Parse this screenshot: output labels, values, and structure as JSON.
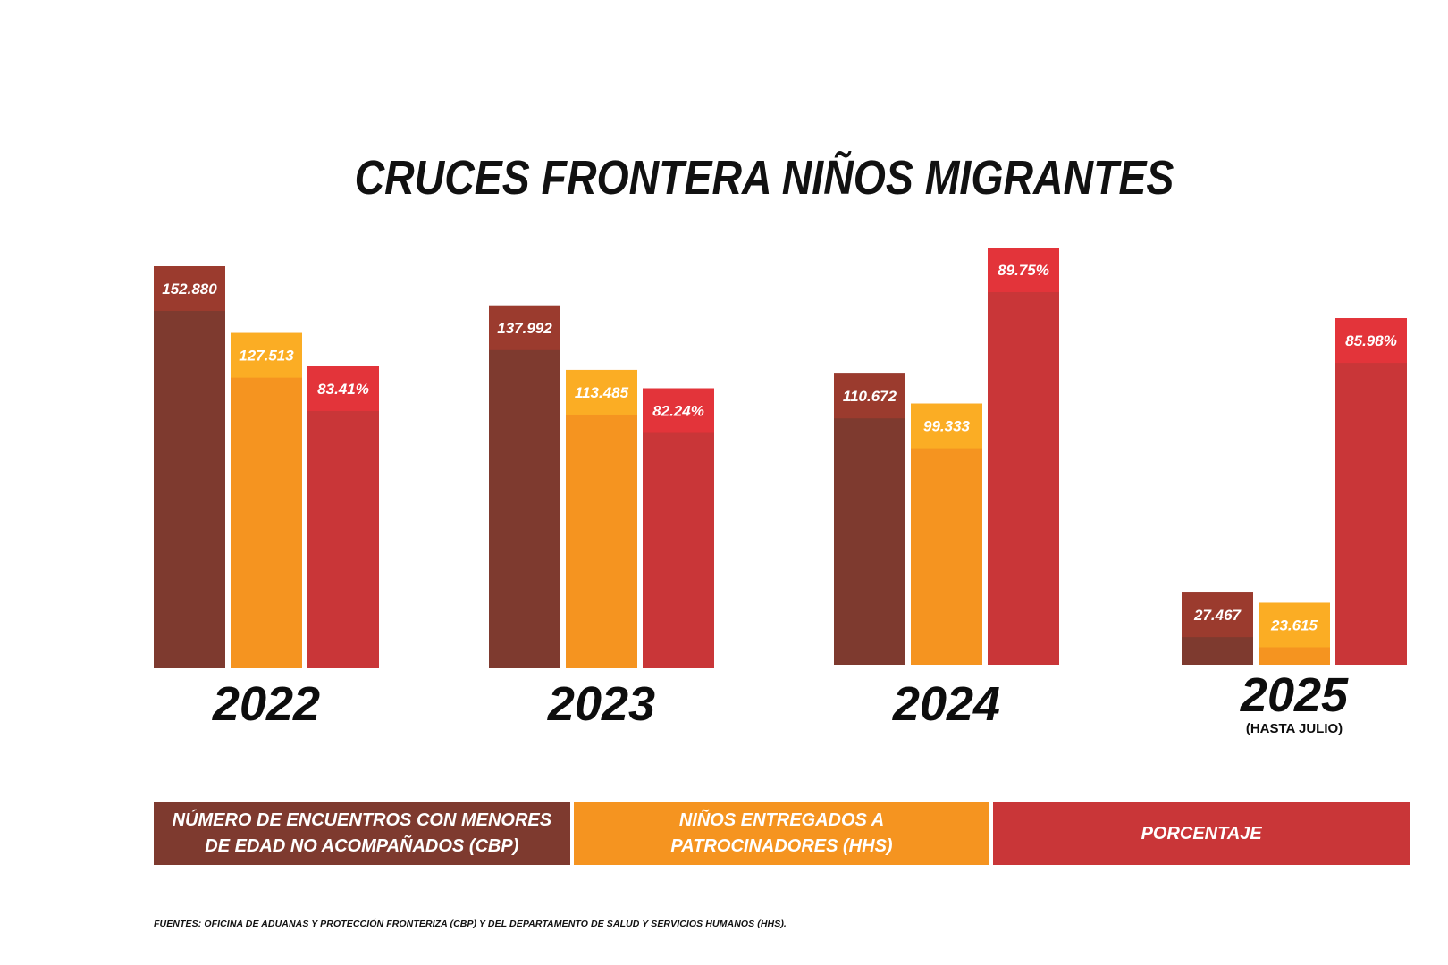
{
  "title": "CRUCES FRONTERA NIÑOS MIGRANTES",
  "chart_data": {
    "type": "bar",
    "title": "CRUCES FRONTERA NIÑOS MIGRANTES",
    "categories": [
      "2022",
      "2023",
      "2024",
      "2025"
    ],
    "category_notes": [
      "",
      "",
      "",
      "(HASTA JULIO)"
    ],
    "series": [
      {
        "name": "NÚMERO DE ENCUENTROS CON MENORES DE EDAD NO ACOMPAÑADOS (CBP)",
        "values": [
          152880,
          137992,
          110672,
          27467
        ],
        "labels": [
          "152.880",
          "137.992",
          "110.672",
          "27.467"
        ],
        "color": "#7e3a2f",
        "label_color": "#9b3b2e"
      },
      {
        "name": "NIÑOS ENTREGADOS A PATROCINADORES (HHS)",
        "values": [
          127513,
          113485,
          99333,
          23615
        ],
        "labels": [
          "127.513",
          "113.485",
          "99.333",
          "23.615"
        ],
        "color": "#f59420",
        "label_color": "#fbad24"
      },
      {
        "name": "PORCENTAJE",
        "values": [
          83.41,
          82.24,
          89.75,
          85.98
        ],
        "labels": [
          "83.41%",
          "82.24%",
          "89.75%",
          "85.98%"
        ],
        "color": "#c93638",
        "label_color": "#e3343a"
      }
    ],
    "legend": "bottom"
  },
  "legend": [
    {
      "label": "NÚMERO DE ENCUENTROS CON MENORES\nDE EDAD NO ACOMPAÑADOS (CBP)",
      "color": "#7e3a2f"
    },
    {
      "label": "NIÑOS ENTREGADOS A\nPATROCINADORES (HHS)",
      "color": "#f59420"
    },
    {
      "label": "PORCENTAJE",
      "color": "#c93638"
    }
  ],
  "footer": "FUENTES: OFICINA DE ADUANAS Y PROTECCIÓN FRONTERIZA (CBP) Y DEL DEPARTAMENTO DE SALUD Y SERVICIOS HUMANOS (HHS)."
}
